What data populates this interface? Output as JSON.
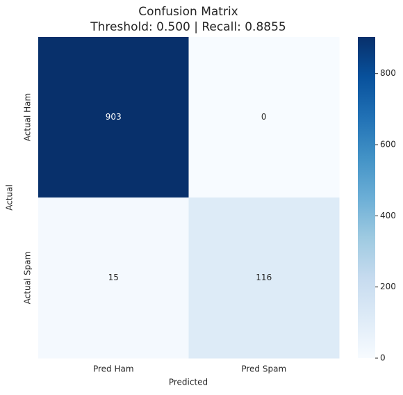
{
  "chart_data": {
    "type": "heatmap",
    "title": "Confusion Matrix",
    "subtitle": "Threshold: 0.500 | Recall: 0.8855",
    "x_categories": [
      "Pred Ham",
      "Pred Spam"
    ],
    "y_categories": [
      "Actual Ham",
      "Actual Spam"
    ],
    "values": [
      [
        903,
        0
      ],
      [
        15,
        116
      ]
    ],
    "xlabel": "Predicted",
    "ylabel": "Actual",
    "clim": [
      0,
      903
    ],
    "colorbar_ticks": [
      0,
      200,
      400,
      600,
      800
    ],
    "colormap": [
      "#f7fbff",
      "#deebf7",
      "#c6dbef",
      "#9ecae1",
      "#6baed6",
      "#4292c6",
      "#2171b5",
      "#08519c",
      "#08306b"
    ]
  }
}
